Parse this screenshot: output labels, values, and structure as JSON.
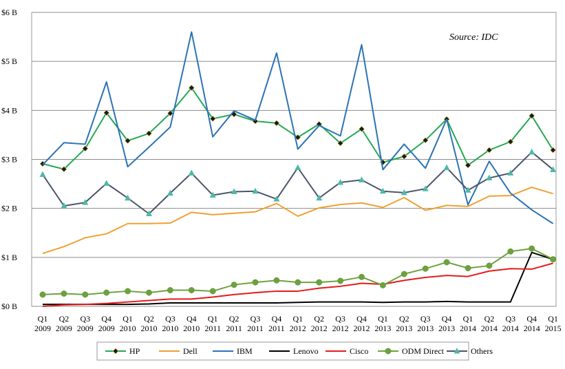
{
  "chart_data": {
    "type": "line",
    "source_note": "Source: IDC",
    "x_labels": [
      [
        "Q1",
        "2009"
      ],
      [
        "Q2",
        "2009"
      ],
      [
        "Q3",
        "2009"
      ],
      [
        "Q4",
        "2009"
      ],
      [
        "Q1",
        "2010"
      ],
      [
        "Q2",
        "2010"
      ],
      [
        "Q3",
        "2010"
      ],
      [
        "Q4",
        "2010"
      ],
      [
        "Q1",
        "2011"
      ],
      [
        "Q2",
        "2011"
      ],
      [
        "Q3",
        "2011"
      ],
      [
        "Q4",
        "2011"
      ],
      [
        "Q1",
        "2012"
      ],
      [
        "Q2",
        "2012"
      ],
      [
        "Q3",
        "2012"
      ],
      [
        "Q4",
        "2012"
      ],
      [
        "Q1",
        "2013"
      ],
      [
        "Q2",
        "2013"
      ],
      [
        "Q3",
        "2013"
      ],
      [
        "Q4",
        "2013"
      ],
      [
        "Q1",
        "2014"
      ],
      [
        "Q2",
        "2014"
      ],
      [
        "Q3",
        "2014"
      ],
      [
        "Q4",
        "2014"
      ],
      [
        "Q1",
        "2015"
      ]
    ],
    "y_ticks": [
      {
        "value": 0,
        "label": "$0 B"
      },
      {
        "value": 1,
        "label": "$1 B"
      },
      {
        "value": 2,
        "label": "$2 B"
      },
      {
        "value": 3,
        "label": "$3 B"
      },
      {
        "value": 4,
        "label": "$4 B"
      },
      {
        "value": 5,
        "label": "$5 B"
      },
      {
        "value": 6,
        "label": "$6 B"
      }
    ],
    "ylim": [
      0,
      6
    ],
    "grid": true,
    "legend_position": "bottom",
    "series": [
      {
        "name": "HP",
        "color": "#22a952",
        "marker": "diamond",
        "marker_color": "#1a1a1a",
        "values": [
          2.91,
          2.8,
          3.22,
          3.95,
          3.38,
          3.53,
          3.94,
          4.46,
          3.83,
          3.92,
          3.78,
          3.74,
          3.45,
          3.72,
          3.33,
          3.62,
          2.94,
          3.06,
          3.39,
          3.82,
          2.88,
          3.19,
          3.36,
          3.89,
          3.19
        ]
      },
      {
        "name": "Dell",
        "color": "#f0a030",
        "marker": "none",
        "values": [
          1.08,
          1.22,
          1.4,
          1.48,
          1.69,
          1.69,
          1.7,
          1.92,
          1.87,
          1.9,
          1.93,
          2.1,
          1.84,
          2.01,
          2.08,
          2.11,
          2.02,
          2.22,
          1.96,
          2.06,
          2.04,
          2.25,
          2.26,
          2.43,
          2.3
        ]
      },
      {
        "name": "IBM",
        "color": "#2b72b6",
        "marker": "none",
        "values": [
          2.89,
          3.34,
          3.31,
          4.58,
          2.85,
          3.25,
          3.66,
          5.6,
          3.46,
          3.99,
          3.8,
          5.17,
          3.21,
          3.69,
          3.48,
          5.34,
          2.79,
          3.31,
          2.82,
          3.82,
          2.07,
          2.96,
          2.31,
          1.97,
          1.69
        ]
      },
      {
        "name": "Lenovo",
        "color": "#000000",
        "marker": "none",
        "values": [
          0.04,
          0.04,
          0.04,
          0.04,
          0.04,
          0.05,
          0.07,
          0.07,
          0.07,
          0.07,
          0.07,
          0.07,
          0.08,
          0.09,
          0.09,
          0.09,
          0.08,
          0.09,
          0.09,
          0.1,
          0.09,
          0.09,
          0.09,
          1.1,
          0.96
        ]
      },
      {
        "name": "Cisco",
        "color": "#e41b1b",
        "marker": "none",
        "values": [
          0.0,
          0.03,
          0.04,
          0.06,
          0.09,
          0.12,
          0.15,
          0.15,
          0.19,
          0.24,
          0.28,
          0.31,
          0.31,
          0.37,
          0.41,
          0.47,
          0.45,
          0.53,
          0.59,
          0.63,
          0.61,
          0.72,
          0.77,
          0.76,
          0.88
        ]
      },
      {
        "name": "ODM Direct",
        "color": "#6ca23d",
        "marker": "circle",
        "marker_color": "#6ca23d",
        "values": [
          0.24,
          0.26,
          0.24,
          0.28,
          0.31,
          0.28,
          0.33,
          0.33,
          0.31,
          0.44,
          0.49,
          0.53,
          0.49,
          0.49,
          0.52,
          0.6,
          0.43,
          0.66,
          0.77,
          0.9,
          0.78,
          0.83,
          1.12,
          1.18,
          0.96
        ]
      },
      {
        "name": "Others",
        "color": "#4a5568",
        "marker": "triangle",
        "marker_color": "#4fb8a8",
        "values": [
          2.69,
          2.05,
          2.12,
          2.51,
          2.21,
          1.89,
          2.31,
          2.72,
          2.27,
          2.34,
          2.35,
          2.19,
          2.83,
          2.21,
          2.53,
          2.58,
          2.35,
          2.32,
          2.4,
          2.83,
          2.37,
          2.62,
          2.72,
          3.15,
          2.79
        ]
      }
    ]
  }
}
